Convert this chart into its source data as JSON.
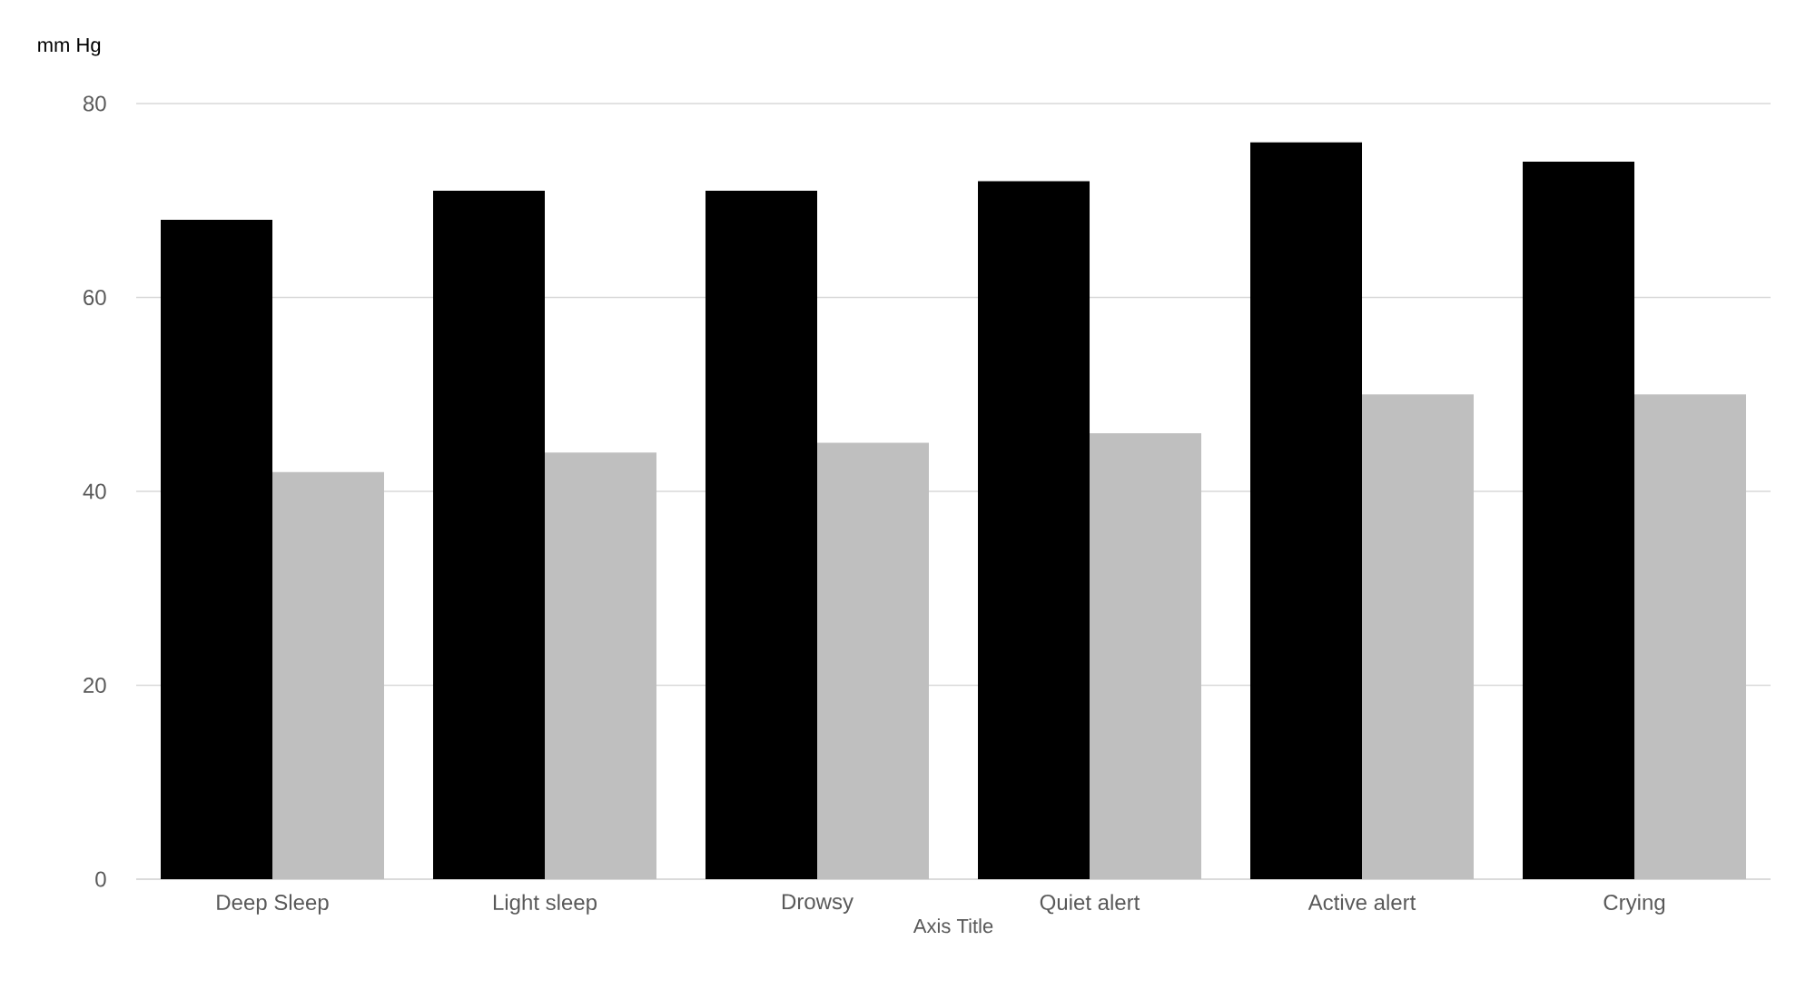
{
  "chart_data": {
    "type": "bar",
    "ylabel": "mm Hg",
    "xlabel": "Axis Title",
    "categories": [
      "Deep Sleep",
      "Light sleep",
      "Drowsy",
      "Quiet alert",
      "Active alert",
      "Crying"
    ],
    "series": [
      {
        "color": "#000000",
        "values": [
          68,
          71,
          71,
          72,
          76,
          74
        ]
      },
      {
        "color": "#bfbfbf",
        "values": [
          42,
          44,
          45,
          46,
          50,
          50
        ]
      }
    ],
    "ylim": [
      0,
      80
    ],
    "yticks": [
      0,
      20,
      40,
      60,
      80
    ],
    "grid": "y"
  }
}
